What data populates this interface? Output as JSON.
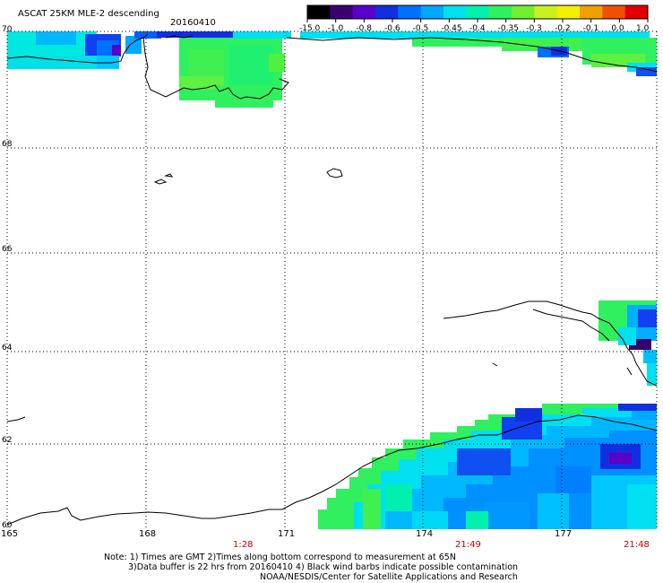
{
  "header": {
    "title": "ASCAT 25KM MLE-2 descending",
    "date": "20160410"
  },
  "colorbar": {
    "labels": [
      "-15.0",
      "-1.0",
      "-0.8",
      "-0.6",
      "-0.5",
      "-0.45",
      "-0.4",
      "-0.35",
      "-0.3",
      "-0.2",
      "-0.1",
      "0.0",
      "1.0"
    ],
    "colors": [
      "#000000",
      "#3a006f",
      "#5a00c8",
      "#1030e0",
      "#0070ff",
      "#00a8ff",
      "#00e0f0",
      "#00f0b0",
      "#30f060",
      "#70f030",
      "#c8f020",
      "#f0f000",
      "#f0a000",
      "#f05000",
      "#e00000"
    ]
  },
  "axes": {
    "lat_labels": [
      "70",
      "68",
      "66",
      "64",
      "62",
      "60"
    ],
    "lon_labels": [
      "165",
      "168",
      "171",
      "174",
      "177"
    ],
    "time_labels": [
      "1:28",
      "21:49",
      "21:48"
    ]
  },
  "notes": {
    "line1": "Note: 1) Times are GMT 2)Times along bottom correspond to measurement at 65N",
    "line2": "3)Data buffer is 22 hrs from 20160410 4) Black wind barbs indicate possible contamination",
    "line3": "NOAA/NESDIS/Center for Satellite Applications and Research"
  }
}
